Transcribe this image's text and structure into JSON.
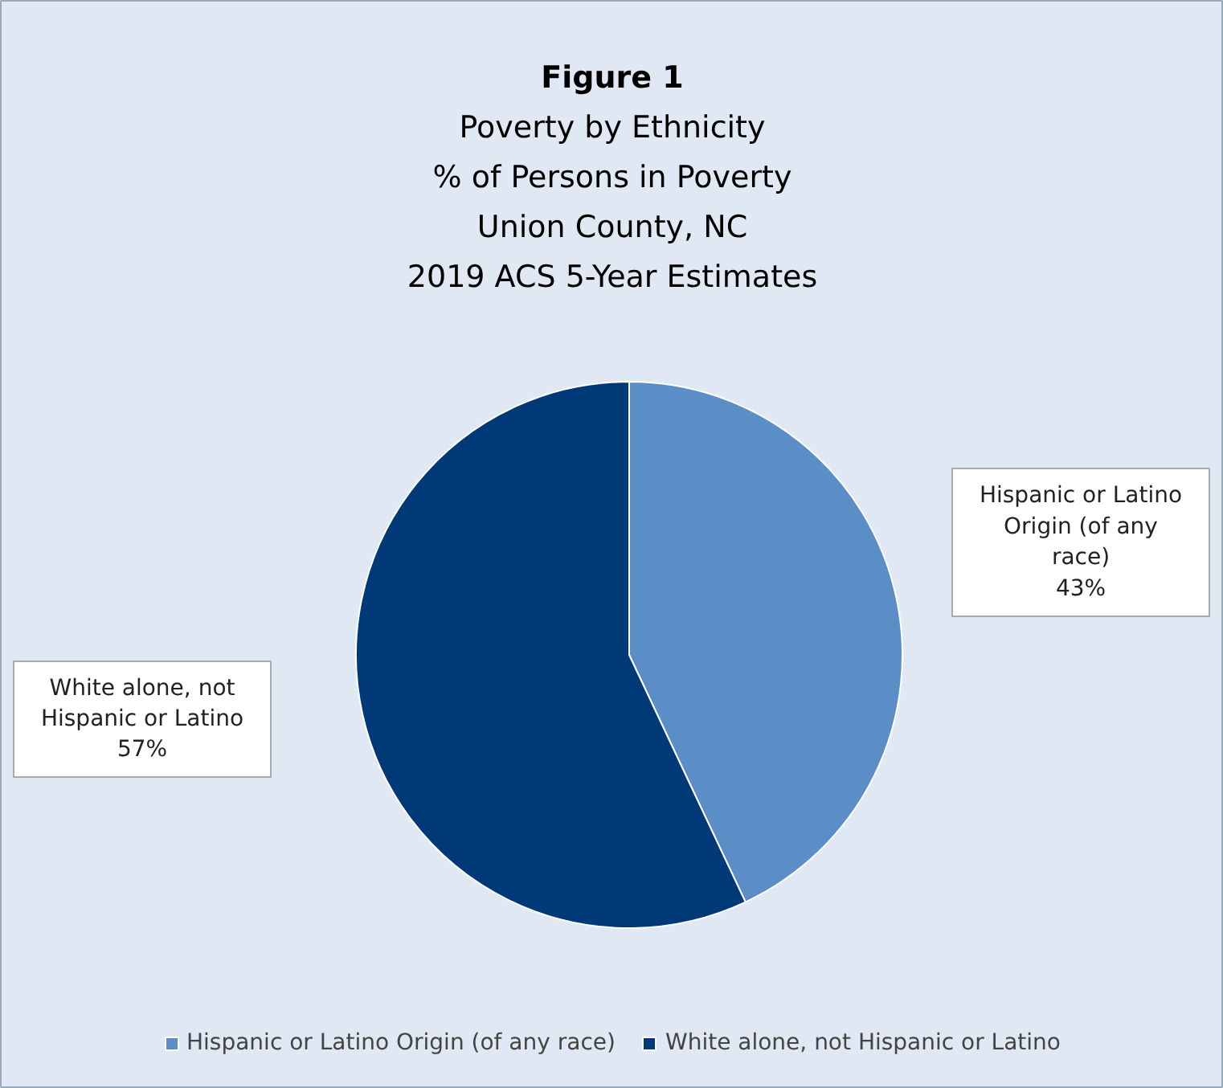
{
  "chart_data": {
    "type": "pie",
    "title": "Figure 1",
    "subtitle": "Poverty by Ethnicity\n% of Persons in Poverty\nUnion County, NC\n2019 ACS 5-Year Estimates",
    "categories": [
      "Hispanic or Latino Origin (of any race)",
      "White alone, not Hispanic or Latino"
    ],
    "values": [
      43,
      57
    ],
    "colors": [
      "#5b8ec6",
      "#003978"
    ],
    "value_labels": [
      "43%",
      "57%"
    ],
    "legend": "bottom"
  }
}
